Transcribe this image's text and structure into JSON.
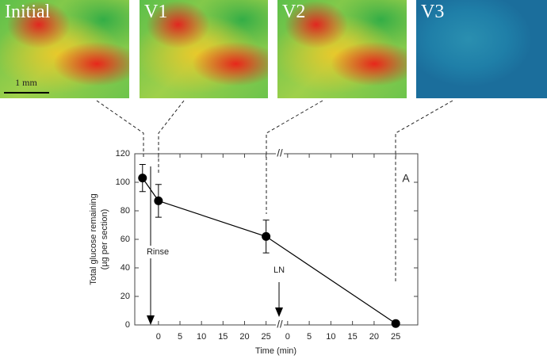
{
  "panels": [
    {
      "label": "Initial"
    },
    {
      "label": "V1"
    },
    {
      "label": "V2"
    },
    {
      "label": "V3"
    }
  ],
  "scale_bar_label": "1 mm",
  "chart_data": {
    "type": "line",
    "ylabel": [
      "Total glucose remaining",
      "(µg per section)"
    ],
    "xlabel": "Time (min)",
    "ylim": [
      0,
      120
    ],
    "yticks": [
      0,
      20,
      40,
      60,
      80,
      100,
      120
    ],
    "x_segments": [
      {
        "xlim": [
          -5.5,
          28.2
        ],
        "xticks": [
          0,
          5,
          10,
          15,
          20,
          25
        ]
      },
      {
        "xlim": [
          -1.8,
          30.1
        ],
        "xticks": [
          0,
          5,
          10,
          15,
          20,
          25
        ]
      }
    ],
    "break_label": "//",
    "series": [
      {
        "color": "#000000",
        "x": [
          -3.7,
          0,
          25,
          25
        ],
        "segment": [
          0,
          0,
          0,
          1
        ],
        "values": [
          103,
          87,
          62,
          1
        ],
        "errors": [
          9.5,
          11.5,
          11.5,
          null
        ]
      }
    ],
    "annotations": [
      "Rinse",
      "LN",
      "A"
    ]
  }
}
